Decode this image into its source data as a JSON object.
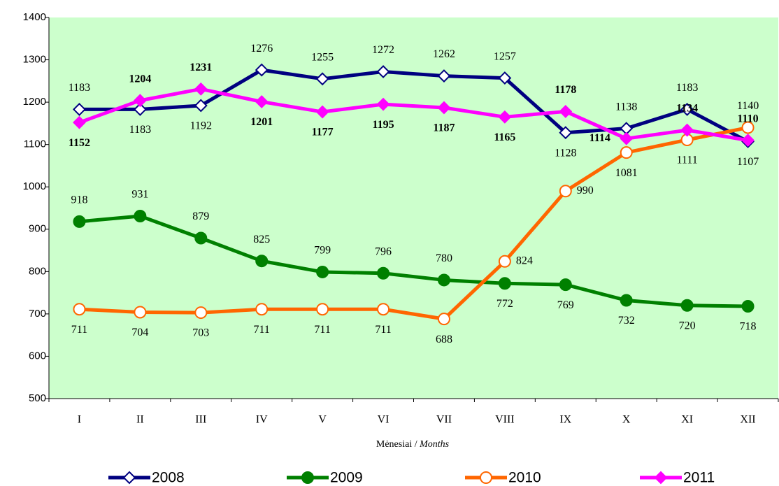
{
  "chart_data": {
    "type": "line",
    "xlabel": [
      "Mėnesiai /",
      "Months"
    ],
    "categories": [
      "I",
      "II",
      "III",
      "IV",
      "V",
      "VI",
      "VII",
      "VIII",
      "IX",
      "X",
      "XI",
      "XII"
    ],
    "series": [
      {
        "name": "2008",
        "color": "#000080",
        "marker": "diamond",
        "marker_fill": "#ffffff",
        "label_bold": false,
        "values": [
          1183,
          1183,
          1192,
          1276,
          1255,
          1272,
          1262,
          1257,
          1128,
          1138,
          1183,
          1107
        ]
      },
      {
        "name": "2009",
        "color": "#008000",
        "marker": "circle",
        "marker_fill": "#008000",
        "label_bold": false,
        "values": [
          918,
          931,
          879,
          825,
          799,
          796,
          780,
          772,
          769,
          732,
          720,
          718
        ]
      },
      {
        "name": "2010",
        "color": "#ff6600",
        "marker": "circle",
        "marker_fill": "#ffffff",
        "label_bold": false,
        "values": [
          711,
          704,
          703,
          711,
          711,
          711,
          688,
          824,
          990,
          1081,
          1111,
          1140
        ]
      },
      {
        "name": "2011",
        "color": "#ff00ff",
        "marker": "diamond",
        "marker_fill": "#ff00ff",
        "label_bold": true,
        "values": [
          1152,
          1204,
          1231,
          1201,
          1177,
          1195,
          1187,
          1165,
          1178,
          1114,
          1134,
          1110
        ]
      }
    ],
    "ylim": [
      500,
      1400
    ],
    "yticks": [
      500,
      600,
      700,
      800,
      900,
      1000,
      1100,
      1200,
      1300,
      1400
    ],
    "plot_background": "#ccffcc",
    "grid": false,
    "legend": "bottom"
  }
}
